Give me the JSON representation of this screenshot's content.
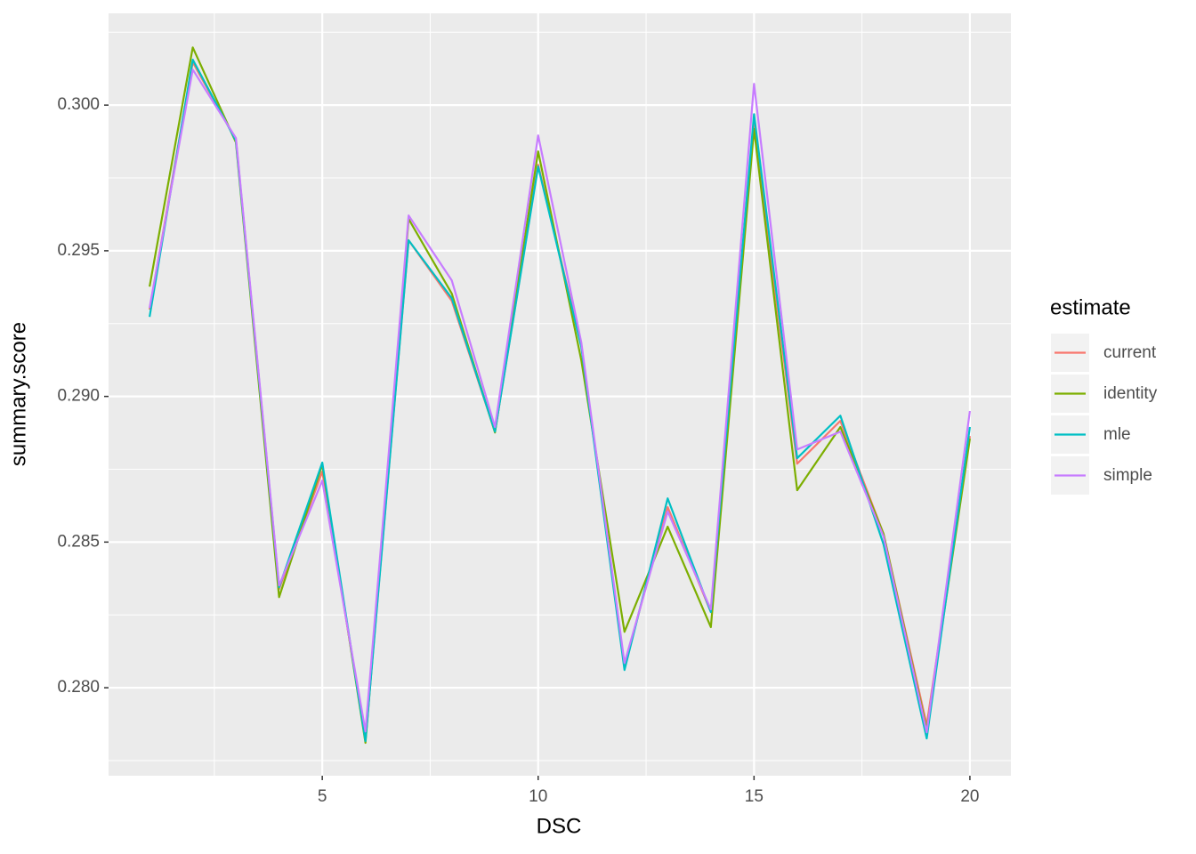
{
  "chart_data": {
    "type": "line",
    "x_label": "DSC",
    "y_label": "summary.score",
    "legend_title": "estimate",
    "legend_position": "right",
    "grid": true,
    "x": [
      1,
      2,
      3,
      4,
      5,
      6,
      7,
      8,
      9,
      10,
      11,
      12,
      13,
      14,
      15,
      16,
      17,
      18,
      19,
      20
    ],
    "xlim": [
      0.05,
      20.95
    ],
    "xticks": [
      5,
      10,
      15,
      20
    ],
    "ylim": [
      0.27698,
      0.30315
    ],
    "yticks": [
      {
        "value": 0.28,
        "label": "0.280"
      },
      0.285,
      {
        "value": 0.29,
        "label": "0.290"
      },
      0.295,
      {
        "value": 0.3,
        "label": "0.300"
      }
    ],
    "series": [
      {
        "name": "current",
        "color": "#F8766D",
        "values": [
          0.29298,
          0.30147,
          0.29881,
          0.28339,
          0.28742,
          0.27826,
          0.29536,
          0.29328,
          0.28879,
          0.29795,
          0.29176,
          0.28076,
          0.2862,
          0.2826,
          0.29933,
          0.28769,
          0.28916,
          0.28528,
          0.27872,
          0.28864
        ]
      },
      {
        "name": "identity",
        "color": "#7CAE00",
        "values": [
          0.29377,
          0.30198,
          0.29872,
          0.28311,
          0.28766,
          0.27811,
          0.29609,
          0.29353,
          0.28876,
          0.29841,
          0.29124,
          0.28192,
          0.28553,
          0.28208,
          0.29918,
          0.28678,
          0.28895,
          0.28528,
          0.27856,
          0.28855
        ]
      },
      {
        "name": "mle",
        "color": "#00BFC4",
        "values": [
          0.29273,
          0.30156,
          0.29878,
          0.28345,
          0.28773,
          0.27817,
          0.29536,
          0.29337,
          0.28879,
          0.29789,
          0.2917,
          0.28061,
          0.2865,
          0.2826,
          0.29969,
          0.28788,
          0.28934,
          0.28492,
          0.27826,
          0.28895
        ]
      },
      {
        "name": "simple",
        "color": "#C77CFF",
        "values": [
          0.29304,
          0.30122,
          0.29887,
          0.28351,
          0.28711,
          0.2785,
          0.29621,
          0.29398,
          0.28895,
          0.29896,
          0.29185,
          0.28085,
          0.28605,
          0.28269,
          0.30073,
          0.28818,
          0.28879,
          0.28519,
          0.27847,
          0.2895
        ]
      }
    ]
  }
}
